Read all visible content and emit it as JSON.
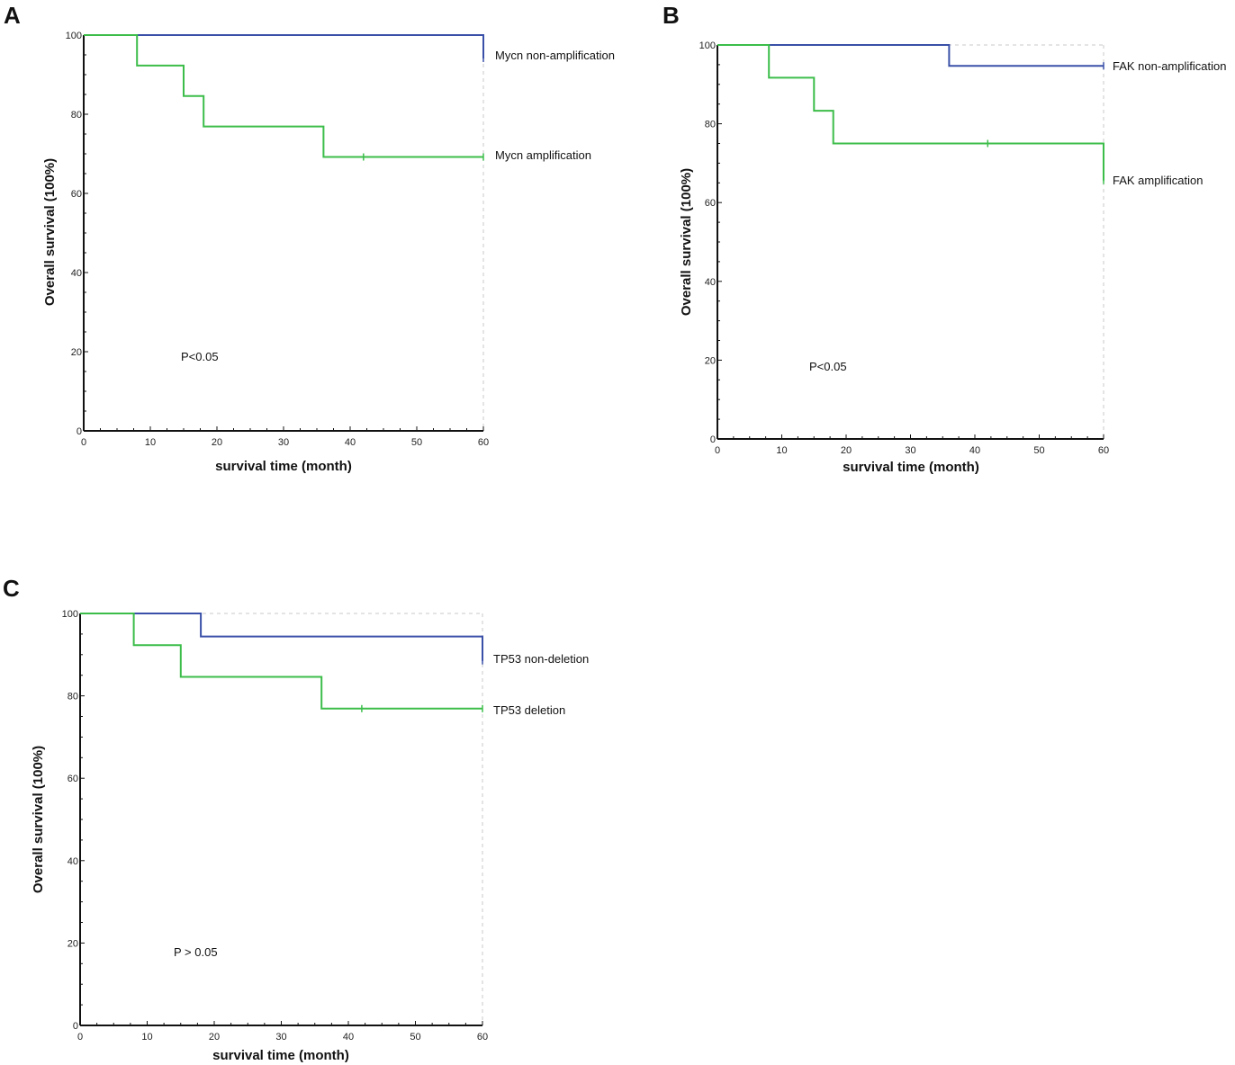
{
  "chart_data": [
    {
      "type": "line",
      "panel_label": "A",
      "xlabel": "survival time (month)",
      "ylabel": "Overall survival (100%)",
      "xlim": [
        0,
        60
      ],
      "ylim": [
        0,
        100
      ],
      "xticks": [
        "0",
        "10",
        "20",
        "30",
        "40",
        "50",
        "60"
      ],
      "yticks": [
        "0",
        "20",
        "40",
        "60",
        "80",
        "100"
      ],
      "annotation": "P<0.05",
      "series": [
        {
          "name": "Mycn non-amplification",
          "color": "#3a50a8",
          "x": [
            0,
            60,
            60
          ],
          "y": [
            100,
            100,
            94.1
          ],
          "censored_x": [
            60
          ]
        },
        {
          "name": "Mycn amplification",
          "color": "#3cbd4a",
          "x": [
            0,
            8,
            8,
            15,
            15,
            18,
            18,
            36,
            36,
            60
          ],
          "y": [
            100,
            100,
            92.3,
            92.3,
            84.6,
            84.6,
            76.9,
            76.9,
            69.2,
            69.2
          ],
          "censored_x": [
            42,
            60
          ]
        }
      ]
    },
    {
      "type": "line",
      "panel_label": "B",
      "xlabel": "survival time (month)",
      "ylabel": "Overall survival (100%)",
      "xlim": [
        0,
        60
      ],
      "ylim": [
        0,
        100
      ],
      "xticks": [
        "0",
        "10",
        "20",
        "30",
        "40",
        "50",
        "60"
      ],
      "yticks": [
        "0",
        "20",
        "40",
        "60",
        "80",
        "100"
      ],
      "annotation": "P<0.05",
      "series": [
        {
          "name": "FAK non-amplification",
          "color": "#3a50a8",
          "x": [
            0,
            36,
            36,
            60
          ],
          "y": [
            100,
            100,
            94.7,
            94.7
          ],
          "censored_x": [
            60
          ]
        },
        {
          "name": "FAK amplification",
          "color": "#3cbd4a",
          "x": [
            0,
            8,
            8,
            15,
            15,
            18,
            18,
            60,
            60
          ],
          "y": [
            100,
            100,
            91.7,
            91.7,
            83.3,
            83.3,
            75,
            75,
            65.6
          ],
          "censored_x": [
            42,
            60
          ]
        }
      ]
    },
    {
      "type": "line",
      "panel_label": "C",
      "xlabel": "survival time (month)",
      "ylabel": "Overall survival (100%)",
      "xlim": [
        0,
        60
      ],
      "ylim": [
        0,
        100
      ],
      "xticks": [
        "0",
        "10",
        "20",
        "30",
        "40",
        "50",
        "60"
      ],
      "yticks": [
        "0",
        "20",
        "40",
        "60",
        "80",
        "100"
      ],
      "annotation": "P > 0.05",
      "series": [
        {
          "name": "TP53 non-deletion",
          "color": "#3a50a8",
          "x": [
            0,
            18,
            18,
            60,
            60
          ],
          "y": [
            100,
            100,
            94.4,
            94.4,
            88.5
          ],
          "censored_x": [
            60
          ]
        },
        {
          "name": "TP53 deletion",
          "color": "#3cbd4a",
          "x": [
            0,
            8,
            8,
            15,
            15,
            36,
            36,
            60
          ],
          "y": [
            100,
            100,
            92.3,
            92.3,
            84.6,
            84.6,
            76.9,
            76.9
          ],
          "censored_x": [
            42,
            60
          ]
        }
      ]
    }
  ]
}
